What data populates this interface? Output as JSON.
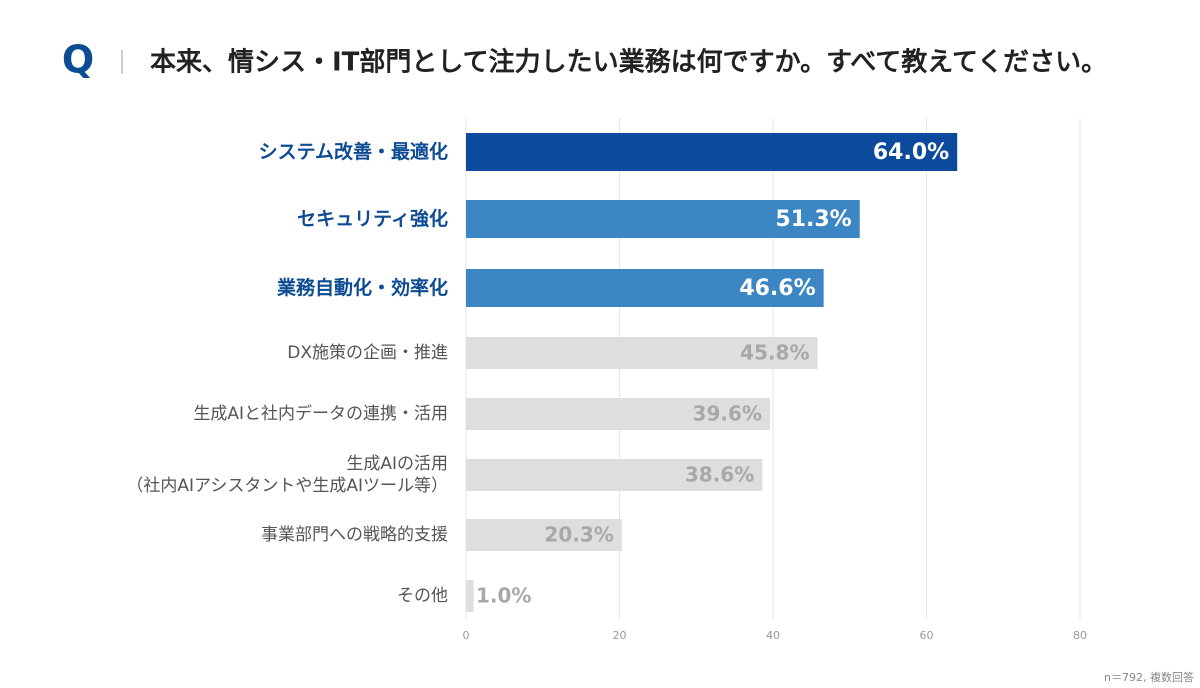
{
  "q_mark": "Q",
  "chart_data": {
    "type": "bar",
    "orientation": "horizontal",
    "title": "本来、情シス・IT部門として注力したい業務は何ですか。すべて教えてください。",
    "categories": [
      "システム改善・最適化",
      "セキュリティ強化",
      "業務自動化・効率化",
      "DX施策の企画・推進",
      "生成AIと社内データの連携・活用",
      "生成AIの活用\n（社内AIアシスタントや生成AIツール等）",
      "事業部門への戦略的支援",
      "その他"
    ],
    "values": [
      64.0,
      51.3,
      46.6,
      45.8,
      39.6,
      38.6,
      20.3,
      1.0
    ],
    "value_labels": [
      "64.0%",
      "51.3%",
      "46.6%",
      "45.8%",
      "39.6%",
      "38.6%",
      "20.3%",
      "1.0%"
    ],
    "colors": [
      "#0b4a9c",
      "#3b86c3",
      "#3b86c3",
      "#dedede",
      "#dedede",
      "#dedede",
      "#dedede",
      "#dedede"
    ],
    "label_colors": [
      "#0d4b93",
      "#0d4b93",
      "#0d4b93",
      "#555555",
      "#555555",
      "#555555",
      "#555555",
      "#555555"
    ],
    "value_label_colors": [
      "#ffffff",
      "#ffffff",
      "#ffffff",
      "#a8a8a8",
      "#a8a8a8",
      "#a8a8a8",
      "#a8a8a8",
      "#a8a8a8"
    ],
    "xlim": [
      0,
      80
    ],
    "xticks": [
      0,
      20,
      40,
      60,
      80
    ],
    "grid": true,
    "note": "n＝792, 複数回答"
  }
}
